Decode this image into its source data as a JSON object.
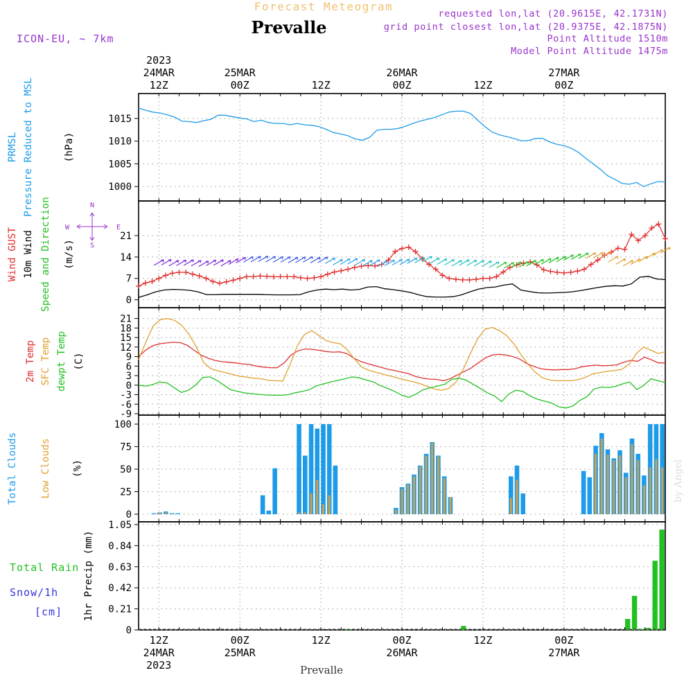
{
  "header": {
    "forecast_title": "Forecast Meteogram",
    "station": "Prevalle",
    "model": "ICON-EU, ~ 7km",
    "requested": "requested lon,lat (20.9615E, 42.1731N)",
    "grid_point": "grid point closest lon,lat (20.9375E, 42.1875N)",
    "point_altitude": "Point Altitude 1510m",
    "model_altitude": "Model Point Altitude 1475m",
    "footer_station": "Prevalle",
    "watermark": "by Angel"
  },
  "colors": {
    "pressure": "#1e9be8",
    "gust": "#e03030",
    "wind": "#000000",
    "green": "#22c022",
    "sfc": "#e0a030",
    "total_clouds": "#1e9be8",
    "low_clouds": "#c8a050",
    "rain": "#22c022",
    "snow": "#3333dd",
    "axis_label": "#000000",
    "compass": "#9933cc",
    "header_purple": "#9933cc",
    "header_orange": "#f0c070"
  },
  "time_axis": {
    "top_labels": [
      {
        "step": 3,
        "lines": [
          "2023",
          "24MAR",
          "12Z"
        ]
      },
      {
        "step": 15,
        "lines": [
          "25MAR",
          "00Z"
        ]
      },
      {
        "step": 27,
        "lines": [
          "12Z"
        ]
      },
      {
        "step": 39,
        "lines": [
          "26MAR",
          "00Z"
        ]
      },
      {
        "step": 51,
        "lines": [
          "12Z"
        ]
      },
      {
        "step": 63,
        "lines": [
          "27MAR",
          "00Z"
        ]
      }
    ],
    "bottom_labels": [
      {
        "step": 3,
        "lines": [
          "12Z",
          "24MAR",
          "2023"
        ]
      },
      {
        "step": 15,
        "lines": [
          "00Z",
          "25MAR"
        ]
      },
      {
        "step": 27,
        "lines": [
          "12Z"
        ]
      },
      {
        "step": 39,
        "lines": [
          "00Z",
          "26MAR"
        ]
      },
      {
        "step": 51,
        "lines": [
          "12Z"
        ]
      },
      {
        "step": 63,
        "lines": [
          "00Z",
          "27MAR"
        ]
      }
    ]
  },
  "chart_data": [
    {
      "type": "line",
      "panel": "pressure",
      "ylabel_lines": [
        {
          "text": "PRMSL",
          "color": "pressure"
        },
        {
          "text": "Pressure Reduced to MSL",
          "color": "pressure"
        },
        {
          "text": "(hPa)",
          "color": "axis_label"
        }
      ],
      "ylim": [
        998.5,
        1018.5
      ],
      "yticks": [
        1000,
        1005,
        1010,
        1015
      ],
      "grid": true,
      "series": [
        {
          "key": "prmsl",
          "color": "pressure",
          "values": [
            1017.3,
            1016.8,
            1016.4,
            1016.2,
            1015.8,
            1015.3,
            1014.4,
            1014.3,
            1014.1,
            1014.5,
            1014.8,
            1015.7,
            1015.7,
            1015.4,
            1015.1,
            1014.9,
            1014.3,
            1014.6,
            1014.1,
            1013.9,
            1013.9,
            1013.6,
            1013.9,
            1013.6,
            1013.5,
            1013.2,
            1012.6,
            1011.9,
            1011.6,
            1011.2,
            1010.5,
            1010.2,
            1010.8,
            1012.4,
            1012.6,
            1012.6,
            1012.8,
            1013.3,
            1013.9,
            1014.4,
            1014.8,
            1015.2,
            1015.8,
            1016.4,
            1016.6,
            1016.6,
            1016.1,
            1014.6,
            1013.2,
            1012.0,
            1011.4,
            1011.0,
            1010.6,
            1010.1,
            1010.1,
            1010.6,
            1010.6,
            1009.8,
            1009.3,
            1009.0,
            1008.4,
            1007.5,
            1006.2,
            1005.0,
            1003.8,
            1002.4,
            1001.6,
            1000.7,
            1000.5,
            1000.9,
            1000.0,
            1000.6,
            1001.1,
            1001.0
          ]
        }
      ]
    },
    {
      "type": "line",
      "panel": "wind",
      "ylabel_lines": [
        {
          "text": "Wind GUST",
          "color": "gust"
        },
        {
          "text": "10m Wind",
          "color": "wind"
        },
        {
          "text": "Speed and Direction",
          "color": "green"
        },
        {
          "text": "(m/s)",
          "color": "axis_label"
        }
      ],
      "ylim": [
        -1,
        26
      ],
      "yticks": [
        0,
        7,
        14,
        21
      ],
      "grid": true,
      "compass": {
        "n": "N",
        "s": "S",
        "w": "W",
        "e": "E"
      },
      "series": [
        {
          "key": "gust",
          "color": "gust",
          "marker": "plus",
          "values": [
            4.5,
            5.5,
            6.0,
            7.0,
            8.0,
            8.7,
            9.0,
            9.0,
            8.4,
            7.8,
            7.0,
            6.0,
            5.4,
            5.9,
            6.4,
            7.0,
            7.6,
            7.6,
            7.8,
            7.7,
            7.5,
            7.6,
            7.6,
            7.6,
            7.2,
            7.0,
            7.2,
            7.6,
            8.4,
            9.1,
            9.5,
            10.0,
            10.6,
            11.0,
            11.2,
            11.1,
            11.6,
            13.0,
            15.8,
            16.8,
            17.2,
            15.8,
            13.4,
            11.6,
            10.0,
            8.0,
            7.0,
            6.7,
            6.5,
            6.5,
            6.7,
            7.0,
            7.0,
            7.6,
            9.1,
            10.6,
            11.4,
            12.0,
            12.4,
            11.4,
            9.8,
            9.3,
            9.0,
            8.8,
            9.0,
            9.4,
            10.0,
            11.6,
            13.0,
            14.6,
            15.6,
            16.9,
            16.5,
            21.4,
            19.4,
            21.0,
            23.5,
            24.8,
            20.0
          ]
        },
        {
          "key": "wind10m",
          "color": "wind",
          "values": [
            0.8,
            1.6,
            2.6,
            3.2,
            3.4,
            3.3,
            3.1,
            2.6,
            1.7,
            1.7,
            1.8,
            1.8,
            1.8,
            1.8,
            1.8,
            1.7,
            1.6,
            1.6,
            1.6,
            1.7,
            2.6,
            3.2,
            3.5,
            3.3,
            3.5,
            3.2,
            3.4,
            4.2,
            4.3,
            3.6,
            3.3,
            2.9,
            2.4,
            1.6,
            1.0,
            0.9,
            0.9,
            1.0,
            1.6,
            2.6,
            3.5,
            4.0,
            4.2,
            4.8,
            5.2,
            3.2,
            2.7,
            2.3,
            2.2,
            2.3,
            2.4,
            2.6,
            3.0,
            3.5,
            4.0,
            4.4,
            4.6,
            4.5,
            5.2,
            7.4,
            7.7,
            6.8,
            6.6
          ]
        },
        {
          "key": "windbarbs",
          "color": "green",
          "values": [
            12.2,
            12.3,
            12.0,
            12.1,
            12.2,
            12.0,
            11.8,
            12.1,
            12.2,
            12.0,
            12.5,
            13.0,
            13.2,
            13.3,
            13.4,
            13.3,
            13.2,
            13.2,
            13.0,
            13.1,
            13.2,
            13.0,
            13.1,
            12.8,
            12.3,
            12.5,
            12.6,
            12.3,
            12.0,
            12.2,
            11.8,
            12.1,
            12.3,
            12.4,
            12.8,
            13.0,
            13.3,
            12.8,
            12.5,
            12.3,
            12.0,
            12.2,
            12.1,
            12.0,
            11.8,
            11.5,
            11.4,
            11.3,
            11.5,
            11.6,
            12.0,
            12.3,
            12.6,
            13.0,
            13.3,
            13.8,
            14.1,
            14.4,
            14.5,
            14.6,
            14.8,
            13.3,
            12.5,
            12.0,
            12.5,
            13.3,
            14.4,
            15.5,
            16.2
          ]
        }
      ]
    },
    {
      "type": "line",
      "panel": "temperature",
      "ylabel_lines": [
        {
          "text": "2m Temp",
          "color": "gust"
        },
        {
          "text": "SFC Temp",
          "color": "sfc"
        },
        {
          "text": "dewpt Temp",
          "color": "green"
        },
        {
          "text": "(C)",
          "color": "axis_label"
        }
      ],
      "ylim": [
        -9,
        22
      ],
      "yticks": [
        -9,
        -6,
        -3,
        0,
        3,
        6,
        9,
        12,
        15,
        18,
        21
      ],
      "grid": true,
      "series": [
        {
          "key": "t2m",
          "color": "gust",
          "values": [
            9.0,
            11.0,
            12.4,
            13.0,
            13.3,
            13.5,
            13.4,
            12.6,
            11.0,
            9.5,
            8.5,
            7.8,
            7.4,
            7.2,
            7.0,
            6.7,
            6.5,
            6.0,
            5.7,
            5.5,
            5.5,
            7.0,
            9.5,
            10.8,
            11.4,
            11.3,
            11.0,
            10.6,
            10.4,
            10.5,
            10.0,
            8.6,
            7.5,
            6.8,
            6.2,
            5.6,
            5.0,
            4.6,
            4.1,
            3.6,
            2.7,
            2.2,
            1.9,
            1.8,
            1.4,
            2.1,
            3.2,
            4.3,
            5.4,
            7.0,
            8.5,
            9.5,
            9.7,
            9.5,
            9.0,
            8.2,
            6.8,
            5.9,
            5.2,
            4.9,
            4.8,
            4.9,
            4.9,
            5.2,
            5.8,
            6.1,
            6.3,
            6.1,
            6.2,
            6.4,
            7.2,
            7.8,
            7.5,
            8.8,
            8.0,
            7.0,
            7.0
          ]
        },
        {
          "key": "tsfc",
          "color": "sfc",
          "values": [
            8.0,
            13.5,
            18.6,
            20.6,
            21.0,
            20.4,
            18.8,
            16.0,
            12.0,
            7.2,
            5.2,
            4.5,
            4.0,
            3.4,
            2.8,
            2.5,
            2.2,
            2.0,
            1.5,
            1.4,
            1.3,
            6.5,
            12.4,
            16.0,
            17.2,
            15.6,
            14.0,
            13.4,
            13.0,
            11.0,
            8.0,
            5.6,
            4.6,
            4.0,
            3.4,
            2.8,
            2.2,
            1.6,
            1.1,
            0.5,
            -0.4,
            -1.2,
            -1.6,
            -1.0,
            1.0,
            5.0,
            10.0,
            14.6,
            17.6,
            18.2,
            17.2,
            15.6,
            13.0,
            9.6,
            6.5,
            4.0,
            2.3,
            1.6,
            1.4,
            1.4,
            1.4,
            1.8,
            2.5,
            3.6,
            4.0,
            4.4,
            4.6,
            5.0,
            6.6,
            10.0,
            12.0,
            11.0,
            10.0,
            10.5
          ]
        },
        {
          "key": "dewpt",
          "color": "green",
          "values": [
            0.0,
            -0.3,
            0.2,
            1.0,
            0.7,
            -0.8,
            -2.3,
            -1.6,
            0.0,
            2.4,
            2.6,
            1.5,
            0.0,
            -1.5,
            -2.0,
            -2.5,
            -2.7,
            -2.9,
            -3.1,
            -3.2,
            -3.2,
            -3.0,
            -2.4,
            -2.0,
            -1.4,
            -0.2,
            0.4,
            1.0,
            1.5,
            2.0,
            2.6,
            2.3,
            1.6,
            1.0,
            -0.2,
            -1.0,
            -2.0,
            -3.2,
            -3.8,
            -2.8,
            -1.4,
            -0.8,
            -0.3,
            0.3,
            1.8,
            2.2,
            1.6,
            0.3,
            -1.0,
            -2.4,
            -3.4,
            -5.2,
            -2.8,
            -1.6,
            -2.0,
            -3.4,
            -4.4,
            -5.0,
            -5.6,
            -6.8,
            -7.2,
            -6.6,
            -4.8,
            -3.6,
            -1.2,
            -0.6,
            -0.8,
            -0.4,
            0.4,
            1.0,
            -1.4,
            0.0,
            2.0,
            1.4,
            0.8
          ]
        }
      ]
    },
    {
      "type": "bar",
      "panel": "clouds",
      "ylabel_lines": [
        {
          "text": "Total Clouds",
          "color": "total_clouds"
        },
        {
          "text": "Low Clouds",
          "color": "sfc"
        },
        {
          "text": "(%)",
          "color": "axis_label"
        }
      ],
      "ylim": [
        0,
        100
      ],
      "yticks": [
        0,
        25,
        50,
        75,
        100
      ],
      "grid": true,
      "series": [
        {
          "key": "total",
          "color": "total_clouds",
          "values": [
            0,
            0,
            1,
            2,
            3,
            1,
            1,
            0,
            0,
            0,
            0,
            0,
            0,
            0,
            0,
            0,
            0,
            0,
            0,
            0,
            21,
            4,
            51,
            0,
            0,
            0,
            100,
            65,
            100,
            95,
            100,
            100,
            54,
            0,
            0,
            0,
            0,
            0,
            0,
            0,
            0,
            0,
            7,
            30,
            34,
            44,
            54,
            67,
            80,
            65,
            42,
            19,
            0,
            0,
            0,
            0,
            0,
            0,
            0,
            0,
            0,
            42,
            54,
            23,
            0,
            0,
            0,
            0,
            0,
            0,
            0,
            0,
            0,
            48,
            41,
            76,
            90,
            72,
            62,
            71,
            46,
            84,
            67,
            43,
            100,
            100,
            100
          ]
        },
        {
          "key": "low",
          "color": "low_clouds",
          "values": [
            0,
            0,
            0,
            2,
            2,
            0,
            0,
            0,
            0,
            0,
            0,
            0,
            0,
            0,
            0,
            0,
            0,
            0,
            0,
            0,
            0,
            0,
            0,
            0,
            0,
            0,
            2,
            2,
            23,
            38,
            11,
            21,
            0,
            0,
            0,
            0,
            0,
            0,
            0,
            0,
            0,
            0,
            5,
            28,
            33,
            42,
            53,
            65,
            79,
            64,
            40,
            19,
            0,
            0,
            0,
            0,
            0,
            0,
            0,
            0,
            0,
            18,
            38,
            0,
            0,
            0,
            0,
            0,
            0,
            0,
            0,
            0,
            0,
            0,
            0,
            67,
            84,
            66,
            60,
            65,
            41,
            78,
            60,
            32,
            52,
            61,
            52
          ]
        }
      ]
    },
    {
      "type": "bar",
      "panel": "precip",
      "ylabel_lines": [
        {
          "text": "1hr Precip (mm)",
          "color": "axis_label"
        }
      ],
      "legend": [
        {
          "text": "Total Rain",
          "color": "rain"
        },
        {
          "text": "Snow/1h",
          "color": "snow"
        },
        {
          "text": "[cm]",
          "color": "snow"
        }
      ],
      "ylim": [
        0,
        1.05
      ],
      "yticks": [
        0,
        0.21,
        0.42,
        0.63,
        0.84,
        1.05
      ],
      "ytick_labels": [
        "0",
        "0.21",
        "0.42",
        "0.63",
        "0.84",
        "1.05"
      ],
      "grid": true,
      "series": [
        {
          "key": "rain",
          "color": "rain",
          "values": [
            0,
            0,
            0,
            0,
            0,
            0,
            0,
            0,
            0,
            0,
            0,
            0,
            0,
            0,
            0,
            0,
            0,
            0,
            0,
            0,
            0,
            0,
            0,
            0,
            0,
            0,
            0,
            0,
            0,
            0,
            0.01,
            0,
            0,
            0,
            0,
            0,
            0,
            0,
            0,
            0,
            0,
            0,
            0,
            0,
            0,
            0,
            0,
            0.04,
            0,
            0,
            0,
            0,
            0,
            0,
            0,
            0,
            0,
            0,
            0,
            0,
            0,
            0,
            0,
            0,
            0,
            0,
            0,
            0,
            0,
            0,
            0,
            0.11,
            0.34,
            0.01,
            0.02,
            0.69,
            1.0
          ]
        }
      ]
    }
  ]
}
